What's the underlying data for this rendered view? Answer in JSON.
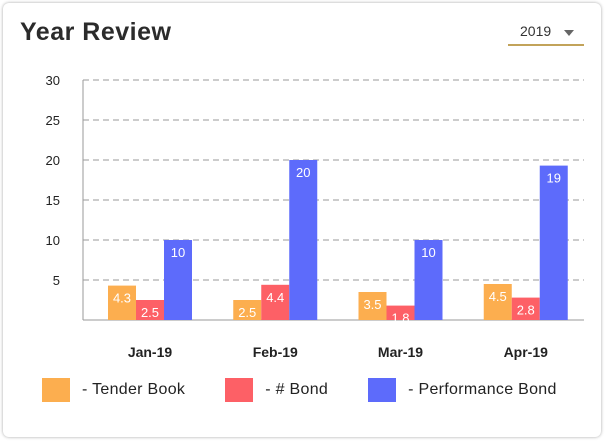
{
  "header": {
    "title": "Year Review"
  },
  "year_select": {
    "value": "2019"
  },
  "chart_data": {
    "type": "bar",
    "title": "",
    "xlabel": "",
    "ylabel": "",
    "categories": [
      "Jan-19",
      "Feb-19",
      "Mar-19",
      "Apr-19"
    ],
    "y_ticks": [
      5,
      10,
      15,
      20,
      25,
      30
    ],
    "ylim": [
      0,
      30
    ],
    "grid": true,
    "legend_position": "bottom",
    "series": [
      {
        "name": "- Tender Book",
        "color": "#fcae4f",
        "values": [
          4.3,
          2.5,
          3.5,
          4.5
        ],
        "labels": [
          "4.3",
          "2.5",
          "3.5",
          "4.5"
        ]
      },
      {
        "name": "- # Bond",
        "color": "#fd6066",
        "values": [
          2.5,
          4.4,
          1.8,
          2.8
        ],
        "labels": [
          "2.5",
          "4.4",
          "1.8",
          "2.8"
        ]
      },
      {
        "name": "- Performance Bond",
        "color": "#5d6bfb",
        "values": [
          10,
          20,
          10,
          19.3
        ],
        "labels": [
          "10",
          "20",
          "10",
          "19"
        ]
      }
    ]
  }
}
